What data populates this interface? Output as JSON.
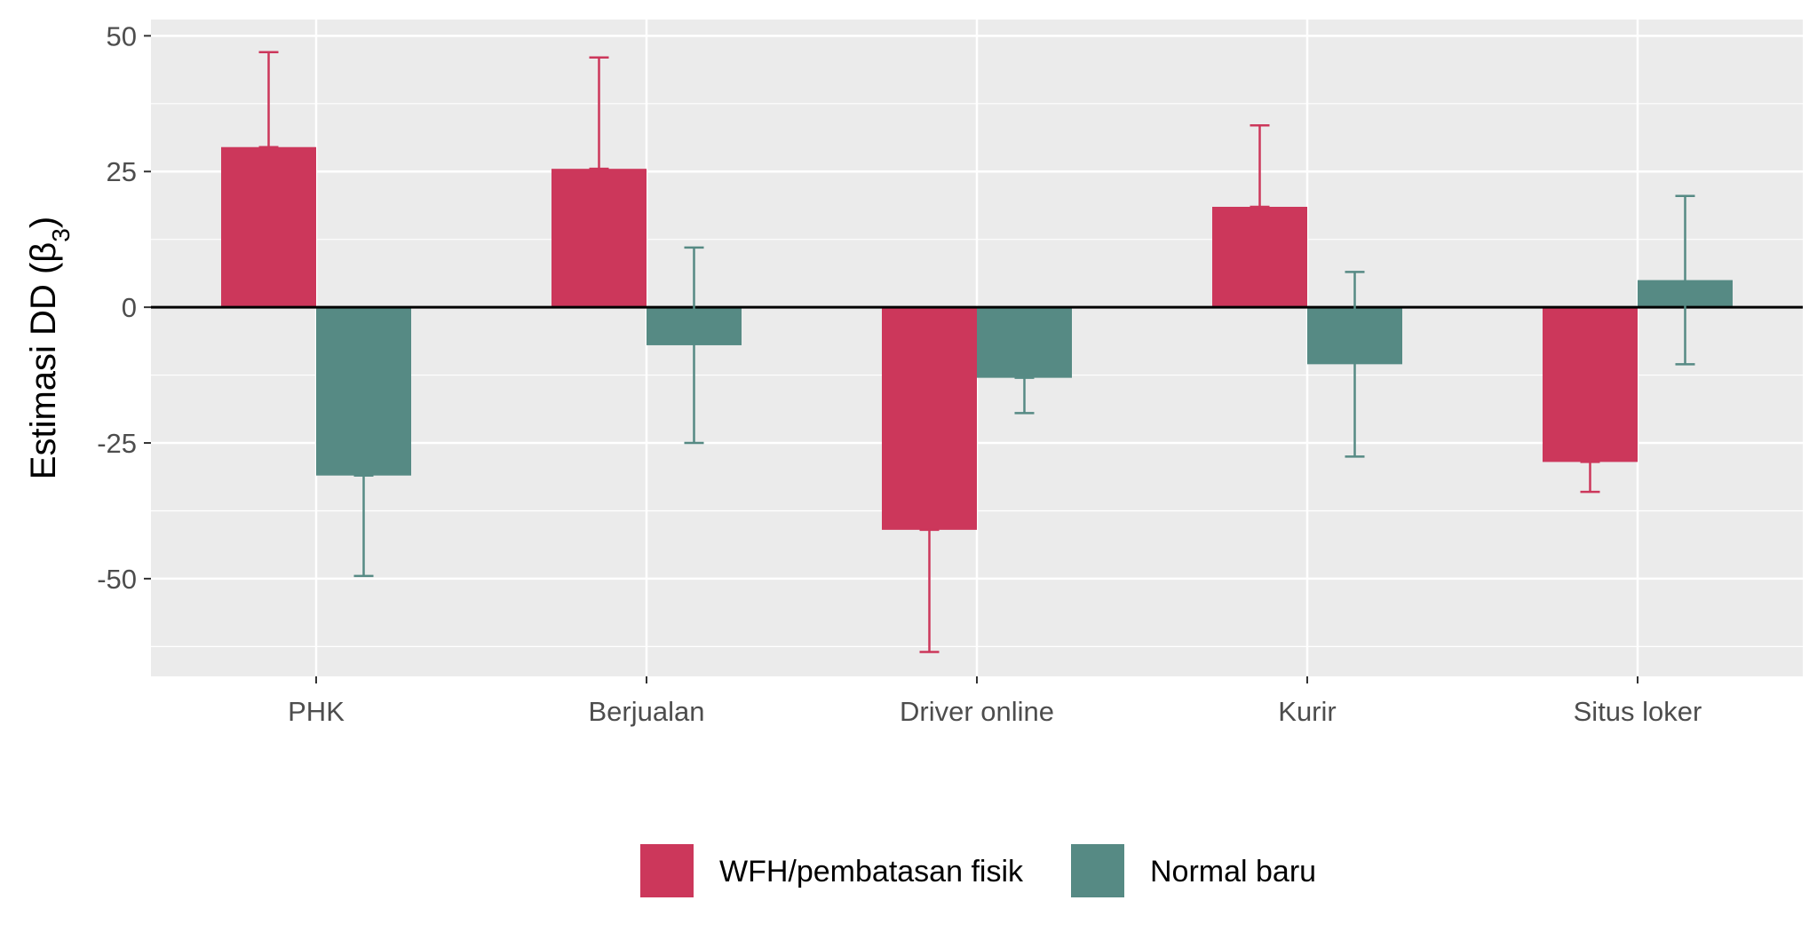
{
  "chart_data": {
    "type": "bar",
    "title": "",
    "xlabel": "",
    "ylabel": "Estimasi DD",
    "ylabel_symbol": "β",
    "ylabel_subscript": "3",
    "categories": [
      "PHK",
      "Berjualan",
      "Driver online",
      "Kurir",
      "Situs loker"
    ],
    "series": [
      {
        "name": "WFH/pembatasan fisik",
        "color": "#CC375B",
        "values": [
          29.5,
          25.5,
          -41,
          18.5,
          -28.5
        ],
        "error_low": [
          29.5,
          25.5,
          -63.5,
          18.5,
          -34
        ],
        "error_high": [
          47,
          46,
          -41,
          33.5,
          -28.5
        ]
      },
      {
        "name": "Normal baru",
        "color": "#568A84",
        "values": [
          -31,
          -7,
          -13,
          -10.5,
          5
        ],
        "error_low": [
          -49.5,
          -25,
          -19.5,
          -27.5,
          -10.5
        ],
        "error_high": [
          -31,
          11,
          -13,
          6.5,
          20.5
        ]
      }
    ],
    "ylim": [
      -68,
      53
    ],
    "yticks": [
      50,
      25,
      0,
      -25,
      -50
    ],
    "ytick_labels": [
      "50",
      "25",
      "0",
      "-25",
      "-50"
    ],
    "grid": true,
    "legend_position": "bottom"
  }
}
